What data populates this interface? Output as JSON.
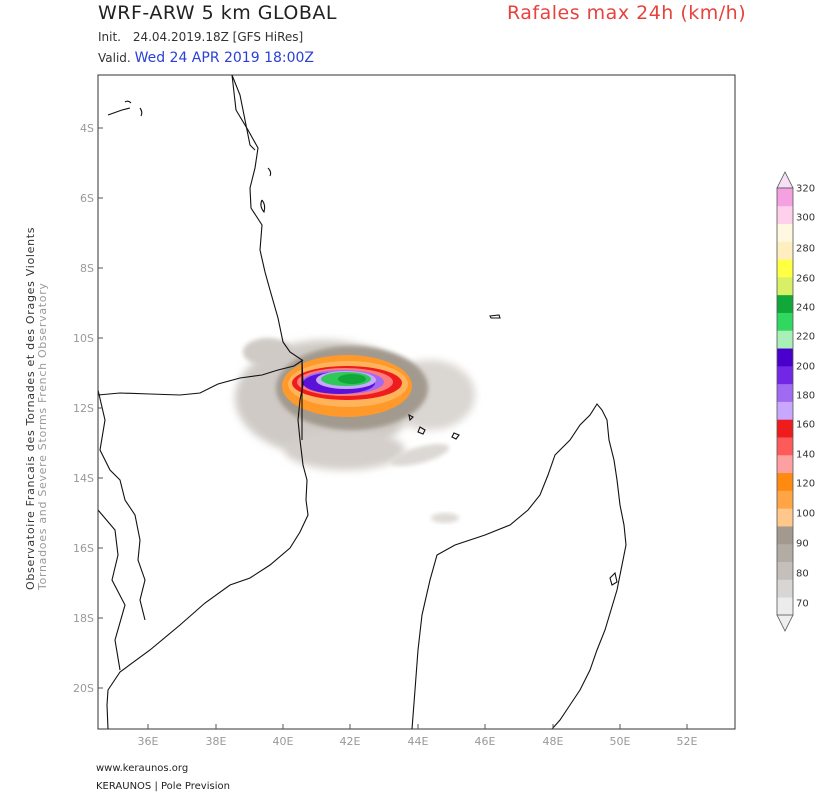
{
  "header": {
    "model_title": "WRF-ARW 5 km GLOBAL",
    "product_title": "Rafales max 24h (km/h)",
    "init_label": "Init.",
    "init_value": "24.04.2019.18Z [GFS HiRes]",
    "valid_label": "Valid.",
    "valid_value": "Wed 24 APR 2019 18:00Z"
  },
  "side_credit": {
    "line1": "Observatoire Francais des Tornades et des Orages Violents",
    "line2": "Tornadoes and Severe Storms French Observatory"
  },
  "footer": {
    "website": "www.keraunos.org",
    "brand": "KERAUNOS | Pole Prevision"
  },
  "axes": {
    "lat_labels": [
      "4S",
      "6S",
      "8S",
      "10S",
      "12S",
      "14S",
      "16S",
      "18S",
      "20S"
    ],
    "lon_labels": [
      "36E",
      "38E",
      "40E",
      "42E",
      "44E",
      "46E",
      "48E",
      "50E",
      "52E"
    ]
  },
  "colorbar": {
    "levels": [
      "70",
      "80",
      "90",
      "100",
      "120",
      "140",
      "160",
      "180",
      "200",
      "220",
      "240",
      "260",
      "280",
      "300",
      "320"
    ],
    "colors": [
      "#ececec",
      "#d8d6d4",
      "#c4bfba",
      "#b3aca4",
      "#a39a8f",
      "#ffc88a",
      "#ffa545",
      "#ff8a10",
      "#ffa0a0",
      "#ff5a5a",
      "#ee1c1c",
      "#c8a8ff",
      "#a06af2",
      "#7226e6",
      "#4a00cc",
      "#a8f0b8",
      "#30d860",
      "#10a838",
      "#d8f066",
      "#ffff44",
      "#ffeec0",
      "#fff8e0",
      "#ffd0ec",
      "#f5a0e0"
    ]
  }
}
